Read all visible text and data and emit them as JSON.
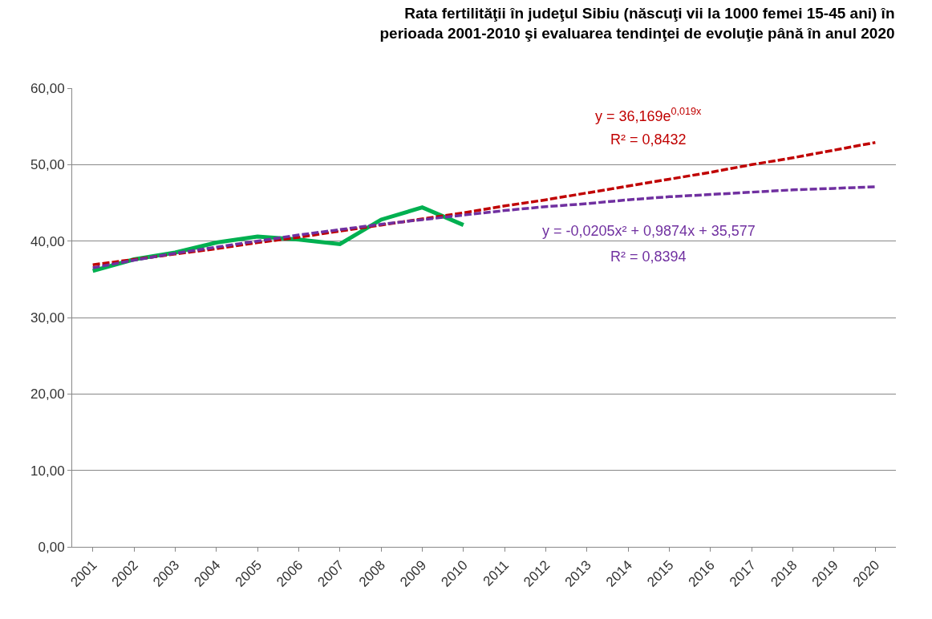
{
  "chart_data": {
    "type": "line",
    "title": "Rata fertilităţii în judeţul Sibiu (născuţi vii la 1000 femei 15-45 ani) în\nperioada 2001-2010 şi evaluarea tendinţei de evoluţie până în anul 2020",
    "categories": [
      "2001",
      "2002",
      "2003",
      "2004",
      "2005",
      "2006",
      "2007",
      "2008",
      "2009",
      "2010",
      "2011",
      "2012",
      "2013",
      "2014",
      "2015",
      "2016",
      "2017",
      "2018",
      "2019",
      "2020"
    ],
    "series": [
      {
        "color": "#00b050",
        "line_style": "solid",
        "values": [
          36.1,
          37.6,
          38.5,
          39.8,
          40.6,
          40.2,
          39.6,
          42.8,
          44.4,
          42.1,
          null,
          null,
          null,
          null,
          null,
          null,
          null,
          null,
          null,
          null
        ]
      },
      {
        "color": "#c00000",
        "line_style": "dashed",
        "values": [
          36.9,
          37.6,
          38.3,
          39.0,
          39.8,
          40.5,
          41.3,
          42.1,
          42.9,
          43.7,
          44.6,
          45.4,
          46.3,
          47.2,
          48.1,
          49.0,
          50.0,
          50.9,
          51.9,
          52.9
        ]
      },
      {
        "color": "#7030a0",
        "line_style": "dashed",
        "values": [
          36.5,
          37.5,
          38.4,
          39.2,
          40.0,
          40.8,
          41.5,
          42.2,
          42.8,
          43.4,
          44.0,
          44.5,
          44.9,
          45.4,
          45.8,
          46.1,
          46.4,
          46.7,
          46.9,
          47.1
        ]
      }
    ],
    "annotations": [
      "y = 36,169e$^{0,019x}$",
      "R² = 0,8432",
      "y = -0,0205x² + 0,9874x + 35,577",
      "R² = 0,8394"
    ],
    "ylim": [
      0,
      60
    ],
    "yticks": [
      {
        "value": 0,
        "label": "0,00"
      },
      {
        "value": 10,
        "label": "10,00"
      },
      {
        "value": 20,
        "label": "20,00"
      },
      {
        "value": 30,
        "label": "30,00"
      },
      {
        "value": 40,
        "label": "40,00"
      },
      {
        "value": 50,
        "label": "50,00"
      },
      {
        "value": 60,
        "label": "60,00"
      }
    ],
    "grid": "y",
    "marker": "none"
  }
}
